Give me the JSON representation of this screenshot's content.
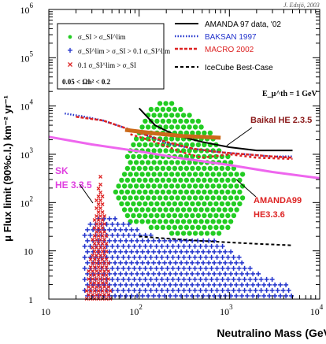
{
  "chart_data": {
    "type": "scatter",
    "credit": "J. Edsjö, 2003",
    "xlabel": "Neutralino Mass (GeV)",
    "ylabel": "μ Flux limit (90%c.l.) km⁻² yr⁻¹",
    "x_scale": "log",
    "y_scale": "log",
    "xlim": [
      10,
      10000
    ],
    "ylim": [
      1,
      1000000
    ],
    "x_ticks": [
      {
        "value": 10,
        "base": "10",
        "exp": ""
      },
      {
        "value": 100,
        "base": "10",
        "exp": "2"
      },
      {
        "value": 1000,
        "base": "10",
        "exp": "3"
      },
      {
        "value": 10000,
        "base": "10",
        "exp": "4"
      }
    ],
    "y_ticks": [
      {
        "value": 1,
        "base": "1",
        "exp": ""
      },
      {
        "value": 10,
        "base": "10",
        "exp": ""
      },
      {
        "value": 100,
        "base": "10",
        "exp": "2"
      },
      {
        "value": 1000,
        "base": "10",
        "exp": "3"
      },
      {
        "value": 10000,
        "base": "10",
        "exp": "4"
      },
      {
        "value": 100000,
        "base": "10",
        "exp": "5"
      },
      {
        "value": 1000000,
        "base": "10",
        "exp": "6"
      }
    ],
    "legend_left": {
      "entries": [
        {
          "marker": "●",
          "color": "#22cc22",
          "text": "σ_SI > σ_SI^lim"
        },
        {
          "marker": "+",
          "color": "#2233cc",
          "text": "σ_SI^lim > σ_SI > 0.1 σ_SI^lim"
        },
        {
          "marker": "×",
          "color": "#dd2222",
          "text": "0.1 σ_SI^lim > σ_SI"
        }
      ],
      "condition": "0.05 < Ωh² < 0.2"
    },
    "legend_right": [
      {
        "name": "AMANDA 97 data, '02",
        "color": "#000000",
        "style": "solid"
      },
      {
        "name": "BAKSAN 1997",
        "color": "#2233cc",
        "style": "dotted"
      },
      {
        "name": "MACRO 2002",
        "color": "#dd2222",
        "style": "dashed"
      },
      {
        "name": "IceCube Best-Case",
        "color": "#000000",
        "style": "dashed"
      }
    ],
    "threshold_note": "E_μ^th = 1 GeV",
    "annotations": [
      {
        "text": "Baikal HE 2.3.5",
        "color": "#8b1a1a"
      },
      {
        "text": "SK",
        "color": "#e040e0"
      },
      {
        "text": "HE 3.3.5",
        "color": "#e040e0"
      },
      {
        "text": "AMANDA99",
        "color": "#dd2222"
      },
      {
        "text": "HE3.3.6",
        "color": "#dd2222"
      }
    ],
    "series": [
      {
        "name": "AMANDA 97 data, '02",
        "color": "#000000",
        "x": [
          100,
          150,
          250,
          500,
          1000,
          2000,
          5000
        ],
        "y": [
          9000,
          4000,
          2500,
          1800,
          1400,
          1200,
          1200
        ]
      },
      {
        "name": "BAKSAN 1997",
        "color": "#2233cc",
        "x": [
          15,
          25,
          40,
          70,
          120,
          200,
          400,
          800,
          1500,
          3000,
          5000
        ],
        "y": [
          7000,
          6000,
          5000,
          3500,
          2500,
          1700,
          1300,
          1100,
          1000,
          900,
          900
        ]
      },
      {
        "name": "MACRO 2002",
        "color": "#dd2222",
        "x": [
          20,
          40,
          70,
          120,
          200,
          400,
          800,
          1500,
          3000,
          5000
        ],
        "y": [
          6000,
          5000,
          3500,
          2500,
          1800,
          1300,
          1100,
          1000,
          900,
          850
        ]
      },
      {
        "name": "IceCube Best-Case",
        "color": "#000000",
        "x": [
          100,
          200,
          500,
          1000,
          2000,
          5000
        ],
        "y": [
          20,
          18,
          16,
          15,
          14,
          13
        ]
      },
      {
        "name": "Baikal HE 2.3.5",
        "color": "#cc6a1a",
        "x": [
          70,
          150,
          300,
          800
        ],
        "y": [
          3200,
          2700,
          2400,
          2200
        ]
      },
      {
        "name": "SK HE 3.3.5",
        "color": "#ee66ee",
        "x": [
          10,
          30,
          100,
          300,
          1000,
          3000,
          10000
        ],
        "y": [
          2300,
          1600,
          1150,
          820,
          600,
          430,
          320
        ]
      },
      {
        "name": "AMANDA99 HE3.3.6",
        "color": "#dd2222",
        "x": [
          80,
          150,
          300,
          500,
          1000,
          2000,
          5000
        ],
        "y": [
          2600,
          1800,
          1100,
          850,
          1000,
          850,
          800
        ]
      }
    ],
    "scatter_regions": [
      {
        "label": "σ_SI > σ_SI^lim",
        "color": "#22cc22",
        "x": [
          55,
          65,
          80,
          100,
          130,
          170,
          220,
          300,
          400,
          600,
          900,
          1200,
          1500,
          1400,
          1000,
          700,
          500,
          350,
          250,
          180,
          130,
          90,
          70,
          55
        ],
        "y": [
          120,
          60,
          40,
          35,
          30,
          25,
          22,
          20,
          20,
          20,
          25,
          40,
          150,
          400,
          800,
          2500,
          4500,
          8000,
          12000,
          15000,
          9000,
          3000,
          700,
          200
        ]
      },
      {
        "label": "σ_SI^lim > σ_SI > 0.1 σ_SI^lim",
        "color": "#2233cc",
        "x": [
          25,
          40,
          60,
          100,
          200,
          400,
          800,
          1500,
          2500,
          5000,
          5000,
          2500,
          1200,
          800,
          500,
          300,
          200,
          120,
          70,
          40,
          25
        ],
        "y": [
          1,
          1,
          1,
          1,
          1,
          1,
          1,
          1,
          1,
          1,
          1.8,
          3,
          8,
          15,
          20,
          20,
          18,
          22,
          40,
          60,
          30
        ]
      },
      {
        "label": "0.1 σ_SI^lim > σ_SI",
        "color": "#dd2222",
        "x": [
          25,
          29,
          33,
          37,
          41,
          45,
          49,
          45,
          41,
          37,
          33,
          29,
          25
        ],
        "y": [
          1,
          1,
          1,
          1,
          1,
          1,
          1,
          10,
          90,
          500,
          100,
          8,
          1
        ]
      }
    ]
  }
}
